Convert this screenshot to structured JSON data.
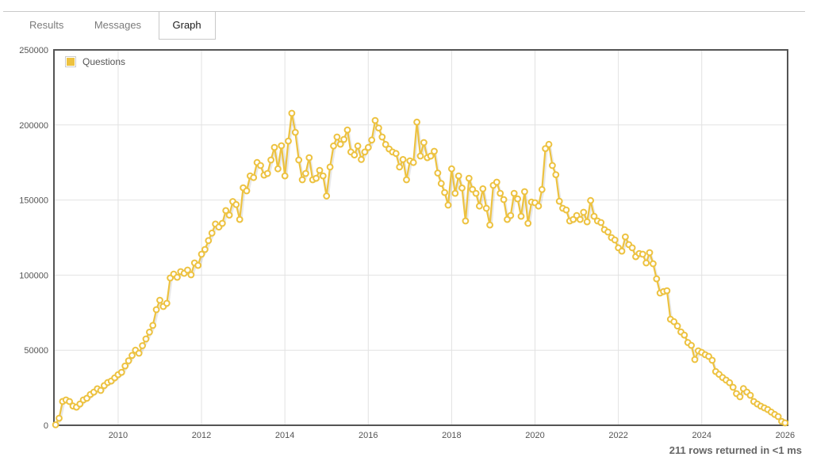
{
  "tabs": [
    {
      "label": "Results",
      "active": false
    },
    {
      "label": "Messages",
      "active": false
    },
    {
      "label": "Graph",
      "active": true
    }
  ],
  "legend": {
    "label": "Questions",
    "swatch_color": "#edc240"
  },
  "status": {
    "text": "211 rows returned in <1 ms"
  },
  "colors": {
    "series": "#edc240",
    "marker_fill": "#ffffff",
    "grid": "#e2e2e2",
    "plot_border": "#545454",
    "axis_label": "#545454",
    "shadow": "rgba(0,0,0,0.09)"
  },
  "chart_data": {
    "type": "line",
    "title": "",
    "xlabel": "",
    "ylabel": "",
    "grid": true,
    "legend_position": "top-left",
    "marker": "circle-open",
    "xlim": [
      2008.46,
      2026.06
    ],
    "ylim": [
      0,
      250000
    ],
    "x_ticks": [
      2010,
      2012,
      2014,
      2016,
      2018,
      2020,
      2022,
      2024,
      2026
    ],
    "y_ticks": [
      0,
      50000,
      100000,
      150000,
      200000,
      250000
    ],
    "series": [
      {
        "name": "Questions",
        "color": "#edc240",
        "start_month": "2008-07",
        "interval": "monthly",
        "points": 211,
        "values": [
          300,
          4700,
          15900,
          16900,
          15800,
          12800,
          12100,
          14200,
          16900,
          18000,
          20500,
          22100,
          24300,
          23200,
          26400,
          28500,
          29500,
          31600,
          33700,
          35300,
          39500,
          43000,
          46500,
          50000,
          48000,
          53000,
          57500,
          62000,
          66500,
          77000,
          83300,
          79100,
          81200,
          98100,
          100700,
          98600,
          102300,
          101200,
          103400,
          100200,
          108100,
          106500,
          113900,
          117100,
          123000,
          128000,
          134000,
          132000,
          134500,
          143000,
          140000,
          149000,
          147000,
          137100,
          158200,
          156100,
          166100,
          165000,
          175000,
          173000,
          166600,
          167700,
          176700,
          185100,
          170800,
          186200,
          166100,
          189300,
          207800,
          195100,
          176700,
          163500,
          167700,
          178200,
          163500,
          164500,
          169800,
          166100,
          152700,
          172000,
          186000,
          192000,
          187200,
          190400,
          196700,
          182000,
          180000,
          186000,
          177000,
          182000,
          185000,
          190000,
          203000,
          198000,
          192000,
          187000,
          184000,
          182000,
          181000,
          172000,
          177000,
          163500,
          176100,
          175000,
          201900,
          179300,
          188300,
          178200,
          179300,
          182500,
          168000,
          161000,
          155000,
          146600,
          170800,
          154500,
          166100,
          158000,
          136100,
          164500,
          157100,
          154500,
          146000,
          157500,
          144500,
          133400,
          159800,
          161900,
          154500,
          150300,
          137100,
          139700,
          154500,
          150800,
          139200,
          155600,
          134500,
          148700,
          148200,
          146000,
          157000,
          184300,
          187100,
          173000,
          166900,
          149200,
          144500,
          143400,
          136100,
          137100,
          139700,
          137100,
          141900,
          135500,
          149700,
          139200,
          136100,
          135000,
          130300,
          128700,
          125000,
          123400,
          118200,
          116000,
          125500,
          120300,
          118200,
          112300,
          114400,
          113900,
          108100,
          115000,
          107600,
          97500,
          88100,
          89100,
          89600,
          70600,
          69000,
          66100,
          62200,
          60100,
          55100,
          53200,
          43800,
          49600,
          48500,
          47000,
          45900,
          43300,
          35800,
          33900,
          31800,
          30100,
          28400,
          25300,
          21100,
          19000,
          24400,
          22100,
          20000,
          15800,
          14200,
          12700,
          11600,
          10500,
          8800,
          7200,
          5800,
          2600,
          1600
        ]
      }
    ]
  }
}
